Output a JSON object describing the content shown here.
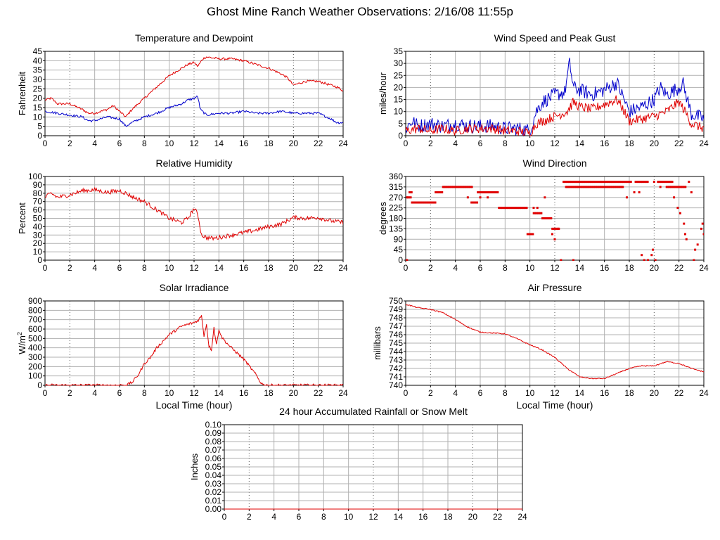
{
  "page": {
    "title": "Ghost Mine Ranch Weather Observations: 2/16/08 11:55p"
  },
  "colors": {
    "red": "#e00000",
    "blue": "#0000cc",
    "grid": "#b0b0b0",
    "frame": "#000000"
  },
  "chart_data": [
    {
      "id": "temperature",
      "type": "line",
      "title": "Temperature and Dewpoint",
      "ylabel": "Fahrenheit",
      "xlabel": "",
      "xlim": [
        0,
        24
      ],
      "ylim": [
        0,
        45
      ],
      "xticks": [
        0,
        2,
        4,
        6,
        8,
        10,
        12,
        14,
        16,
        18,
        20,
        22,
        24
      ],
      "yticks": [
        0,
        5,
        10,
        15,
        20,
        25,
        30,
        35,
        40,
        45
      ],
      "grid": true,
      "series": [
        {
          "color": "#e00000",
          "noise": 0.6,
          "x": [
            0,
            0.5,
            1,
            2,
            3,
            3.5,
            4,
            5,
            5.5,
            6,
            6.5,
            7,
            8,
            9,
            10,
            11,
            11.5,
            12,
            12.3,
            12.7,
            13,
            14,
            15,
            16,
            17,
            18,
            19,
            19.5,
            20,
            21,
            22,
            23,
            23.5,
            24
          ],
          "y": [
            19,
            20,
            17,
            17,
            14,
            12,
            12,
            14,
            16,
            13,
            10,
            14,
            20,
            26,
            32,
            36,
            38,
            39,
            37,
            41,
            42,
            41,
            41,
            40,
            38,
            36,
            33,
            31,
            27,
            29,
            29,
            27,
            26,
            24
          ]
        },
        {
          "color": "#0000cc",
          "noise": 0.6,
          "x": [
            0,
            1,
            2,
            3,
            3.5,
            4,
            5,
            6,
            6.5,
            7,
            8,
            9,
            10,
            11,
            11.5,
            12,
            12.3,
            12.5,
            13,
            14,
            15,
            16,
            17,
            18,
            19,
            20,
            21,
            22,
            23,
            23.5,
            24
          ],
          "y": [
            13,
            12,
            11,
            10,
            8,
            8,
            10,
            9,
            5,
            7,
            10,
            12,
            15,
            17,
            19,
            20,
            21,
            14,
            11,
            12,
            12,
            13,
            12,
            12,
            13,
            12,
            12,
            12,
            9,
            7,
            7
          ]
        }
      ]
    },
    {
      "id": "wind-speed",
      "type": "line",
      "title": "Wind Speed and Peak Gust",
      "ylabel": "miles/hour",
      "xlabel": "",
      "xlim": [
        0,
        24
      ],
      "ylim": [
        0,
        35
      ],
      "xticks": [
        0,
        2,
        4,
        6,
        8,
        10,
        12,
        14,
        16,
        18,
        20,
        22,
        24
      ],
      "yticks": [
        0,
        5,
        10,
        15,
        20,
        25,
        30,
        35
      ],
      "grid": true,
      "series": [
        {
          "color": "#0000cc",
          "noise": 3.0,
          "x": [
            0,
            0.5,
            1,
            2,
            3,
            4,
            5,
            6,
            7,
            8,
            9,
            10,
            10.5,
            11,
            12,
            12.8,
            13.2,
            13.5,
            14,
            15,
            16,
            17,
            17.5,
            18,
            19,
            20,
            20.5,
            21,
            22,
            22.3,
            23,
            24
          ],
          "y": [
            3,
            6,
            4,
            5,
            4,
            5,
            4,
            4,
            4,
            3,
            3,
            2,
            10,
            14,
            17,
            18,
            30,
            20,
            19,
            17,
            19,
            22,
            16,
            10,
            12,
            15,
            20,
            17,
            20,
            22,
            9,
            7
          ]
        },
        {
          "color": "#e00000",
          "noise": 2.0,
          "x": [
            0,
            1,
            2,
            3,
            4,
            5,
            6,
            7,
            8,
            9,
            10,
            10.5,
            11,
            12,
            13,
            13.5,
            14,
            15,
            16,
            17,
            17.5,
            18,
            19,
            20,
            21,
            22,
            22.5,
            23,
            24
          ],
          "y": [
            2,
            3,
            2,
            3,
            2,
            3,
            3,
            3,
            2,
            2,
            1,
            5,
            6,
            8,
            10,
            14,
            12,
            11,
            13,
            15,
            11,
            6,
            7,
            8,
            10,
            14,
            10,
            5,
            3
          ]
        }
      ]
    },
    {
      "id": "humidity",
      "type": "line",
      "title": "Relative Humidity",
      "ylabel": "Percent",
      "xlabel": "",
      "xlim": [
        0,
        24
      ],
      "ylim": [
        0,
        100
      ],
      "xticks": [
        0,
        2,
        4,
        6,
        8,
        10,
        12,
        14,
        16,
        18,
        20,
        22,
        24
      ],
      "yticks": [
        0,
        10,
        20,
        30,
        40,
        50,
        60,
        70,
        80,
        90,
        100
      ],
      "grid": true,
      "series": [
        {
          "color": "#e00000",
          "noise": 2.5,
          "x": [
            0,
            0.5,
            1,
            2,
            3,
            4,
            5,
            6,
            6.5,
            7,
            8,
            9,
            10,
            11,
            11.5,
            12,
            12.3,
            12.6,
            13,
            13.5,
            14,
            15,
            16,
            17,
            18,
            19,
            20,
            21,
            22,
            23,
            24
          ],
          "y": [
            75,
            80,
            75,
            78,
            83,
            84,
            81,
            83,
            80,
            76,
            70,
            60,
            50,
            45,
            50,
            62,
            55,
            30,
            27,
            26,
            27,
            30,
            33,
            36,
            40,
            43,
            51,
            50,
            51,
            47,
            45
          ]
        }
      ]
    },
    {
      "id": "wind-direction",
      "type": "scatter",
      "title": "Wind Direction",
      "ylabel": "degrees",
      "xlabel": "",
      "xlim": [
        0,
        24
      ],
      "ylim": [
        0,
        360
      ],
      "xticks": [
        0,
        2,
        4,
        6,
        8,
        10,
        12,
        14,
        16,
        18,
        20,
        22,
        24
      ],
      "yticks": [
        0,
        45,
        90,
        135,
        180,
        225,
        270,
        315,
        360
      ],
      "grid": true,
      "series": [
        {
          "color": "#e00000",
          "segments": [
            [
              0.1,
              0.3,
              270
            ],
            [
              0.3,
              0.5,
              292
            ],
            [
              0.5,
              2.4,
              248
            ],
            [
              2.4,
              3.0,
              292
            ],
            [
              3.0,
              5.4,
              315
            ],
            [
              5.4,
              5.8,
              248
            ],
            [
              5.8,
              7.5,
              292
            ],
            [
              7.5,
              9.8,
              225
            ],
            [
              9.8,
              10.3,
              112
            ],
            [
              10.3,
              11.0,
              202
            ],
            [
              11.0,
              11.8,
              180
            ],
            [
              11.8,
              12.4,
              135
            ],
            [
              12.7,
              14.0,
              337
            ],
            [
              12.9,
              17.5,
              315
            ],
            [
              14.0,
              18.2,
              337
            ],
            [
              18.5,
              19.5,
              337
            ],
            [
              20.3,
              21.5,
              337
            ],
            [
              21.0,
              22.6,
              315
            ]
          ],
          "points": [
            [
              0.1,
              0
            ],
            [
              0.4,
              270
            ],
            [
              5.0,
              270
            ],
            [
              5.3,
              248
            ],
            [
              6.0,
              270
            ],
            [
              6.6,
              270
            ],
            [
              10.3,
              225
            ],
            [
              10.6,
              225
            ],
            [
              11.2,
              270
            ],
            [
              11.8,
              112
            ],
            [
              12.0,
              90
            ],
            [
              12.3,
              135
            ],
            [
              12.5,
              0
            ],
            [
              13.5,
              0
            ],
            [
              17.8,
              270
            ],
            [
              18.4,
              292
            ],
            [
              18.8,
              292
            ],
            [
              19.0,
              22
            ],
            [
              19.2,
              0
            ],
            [
              19.5,
              0
            ],
            [
              19.8,
              22
            ],
            [
              19.9,
              45
            ],
            [
              20.0,
              337
            ],
            [
              20.1,
              0
            ],
            [
              20.5,
              315
            ],
            [
              21.6,
              270
            ],
            [
              21.9,
              225
            ],
            [
              22.1,
              202
            ],
            [
              22.4,
              157
            ],
            [
              22.5,
              112
            ],
            [
              22.6,
              90
            ],
            [
              22.8,
              337
            ],
            [
              23.0,
              292
            ],
            [
              23.2,
              0
            ],
            [
              23.3,
              45
            ],
            [
              23.5,
              67
            ],
            [
              23.8,
              135
            ],
            [
              23.9,
              157
            ],
            [
              24.0,
              112
            ]
          ]
        }
      ]
    },
    {
      "id": "solar",
      "type": "line",
      "title": "Solar Irradiance",
      "ylabel": "W/m",
      "ylabel_sup": "2",
      "xlabel": "Local Time (hour)",
      "xlim": [
        0,
        24
      ],
      "ylim": [
        0,
        900
      ],
      "xticks": [
        0,
        2,
        4,
        6,
        8,
        10,
        12,
        14,
        16,
        18,
        20,
        22,
        24
      ],
      "yticks": [
        0,
        100,
        200,
        300,
        400,
        500,
        600,
        700,
        800,
        900
      ],
      "grid": true,
      "series": [
        {
          "color": "#e00000",
          "noise": 15,
          "x": [
            0,
            6.5,
            7.0,
            7.5,
            8.0,
            8.5,
            9.0,
            10,
            11,
            12,
            12.3,
            12.6,
            12.8,
            13.0,
            13.2,
            13.4,
            13.6,
            13.8,
            14.0,
            14.2,
            14.5,
            15,
            16,
            17,
            17.3,
            17.6,
            18,
            24
          ],
          "y": [
            0,
            0,
            30,
            110,
            230,
            300,
            400,
            540,
            630,
            670,
            690,
            740,
            530,
            650,
            420,
            380,
            620,
            430,
            600,
            520,
            470,
            400,
            280,
            110,
            40,
            5,
            0,
            0
          ]
        }
      ]
    },
    {
      "id": "pressure",
      "type": "line",
      "title": "Air Pressure",
      "ylabel": "millibars",
      "xlabel": "Local Time (hour)",
      "xlim": [
        0,
        24
      ],
      "ylim": [
        740,
        750
      ],
      "xticks": [
        0,
        2,
        4,
        6,
        8,
        10,
        12,
        14,
        16,
        18,
        20,
        22,
        24
      ],
      "yticks": [
        740,
        741,
        742,
        743,
        744,
        745,
        746,
        747,
        748,
        749,
        750
      ],
      "grid": true,
      "series": [
        {
          "color": "#e00000",
          "noise": 0.06,
          "x": [
            0,
            1,
            2,
            3,
            4,
            5,
            6,
            7,
            8,
            9,
            10,
            11,
            12,
            13,
            14,
            15,
            16,
            17,
            18,
            19,
            20,
            21,
            22,
            23,
            24
          ],
          "y": [
            749.6,
            749.2,
            749.0,
            748.6,
            747.8,
            746.9,
            746.3,
            746.2,
            746.1,
            745.5,
            744.8,
            744.2,
            743.3,
            742.0,
            741.0,
            740.8,
            740.8,
            741.4,
            742.0,
            742.3,
            742.3,
            742.8,
            742.6,
            742.0,
            741.6
          ]
        }
      ]
    },
    {
      "id": "rain",
      "type": "line",
      "title": "24 hour Accumulated Rainfall or Snow Melt",
      "ylabel": "Inches",
      "xlabel": "",
      "xlim": [
        0,
        24
      ],
      "ylim": [
        0,
        0.1
      ],
      "xticks": [
        0,
        2,
        4,
        6,
        8,
        10,
        12,
        14,
        16,
        18,
        20,
        22,
        24
      ],
      "yticks": [
        0.0,
        0.01,
        0.02,
        0.03,
        0.04,
        0.05,
        0.06,
        0.07,
        0.08,
        0.09,
        0.1
      ],
      "ydecimals": 2,
      "grid": true,
      "series": [
        {
          "color": "#e00000",
          "noise": 0,
          "x": [
            0,
            24
          ],
          "y": [
            0,
            0
          ]
        }
      ]
    }
  ]
}
